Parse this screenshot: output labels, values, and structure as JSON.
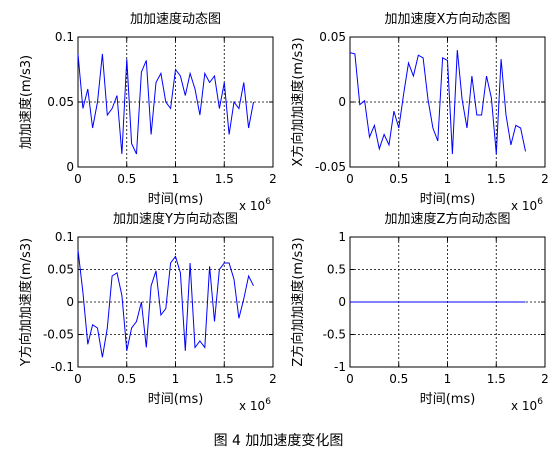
{
  "caption": "图 4  加加速度变化图",
  "colors": {
    "line": "#0000ff",
    "axes": "#000000",
    "grid": "#000000",
    "background": "#ffffff"
  },
  "chart_data": [
    {
      "type": "line",
      "title": "加加速度动态图",
      "xlabel": "时间(ms)",
      "ylabel": "加加速度(m/s3)",
      "x_multiplier": "x 10",
      "x_multiplier_exp": "6",
      "xlim": [
        0,
        2
      ],
      "ylim": [
        0,
        0.1
      ],
      "xticks": [
        0,
        0.5,
        1,
        1.5,
        2
      ],
      "xtick_labels": [
        "0",
        "0.5",
        "1",
        "1.5",
        "2"
      ],
      "yticks": [
        0,
        0.05,
        0.1
      ],
      "ytick_labels": [
        "0",
        "0.05",
        "0.1"
      ],
      "grid": true,
      "series": [
        {
          "x": [
            0,
            0.05,
            0.1,
            0.15,
            0.2,
            0.25,
            0.3,
            0.35,
            0.4,
            0.45,
            0.5,
            0.55,
            0.6,
            0.65,
            0.7,
            0.75,
            0.8,
            0.85,
            0.9,
            0.95,
            1.0,
            1.05,
            1.1,
            1.15,
            1.2,
            1.25,
            1.3,
            1.35,
            1.4,
            1.45,
            1.5,
            1.55,
            1.6,
            1.65,
            1.7,
            1.75,
            1.8
          ],
          "y": [
            0.087,
            0.045,
            0.06,
            0.03,
            0.05,
            0.087,
            0.04,
            0.045,
            0.055,
            0.01,
            0.083,
            0.018,
            0.01,
            0.073,
            0.082,
            0.025,
            0.065,
            0.072,
            0.05,
            0.045,
            0.075,
            0.07,
            0.055,
            0.072,
            0.06,
            0.04,
            0.072,
            0.065,
            0.07,
            0.045,
            0.065,
            0.025,
            0.05,
            0.045,
            0.065,
            0.03,
            0.05
          ]
        }
      ]
    },
    {
      "type": "line",
      "title": "加加速度X方向动态图",
      "xlabel": "时间(ms)",
      "ylabel": "X方向加加速度(m/s3)",
      "x_multiplier": "x 10",
      "x_multiplier_exp": "6",
      "xlim": [
        0,
        2
      ],
      "ylim": [
        -0.05,
        0.05
      ],
      "xticks": [
        0,
        0.5,
        1,
        1.5,
        2
      ],
      "xtick_labels": [
        "0",
        "0.5",
        "1",
        "1.5",
        "2"
      ],
      "yticks": [
        -0.05,
        0,
        0.05
      ],
      "ytick_labels": [
        "-0.05",
        "0",
        "0.05"
      ],
      "grid": true,
      "series": [
        {
          "x": [
            0,
            0.05,
            0.1,
            0.15,
            0.2,
            0.25,
            0.3,
            0.35,
            0.4,
            0.45,
            0.5,
            0.55,
            0.6,
            0.65,
            0.7,
            0.75,
            0.8,
            0.85,
            0.9,
            0.95,
            1.0,
            1.05,
            1.1,
            1.15,
            1.2,
            1.25,
            1.3,
            1.35,
            1.4,
            1.45,
            1.5,
            1.55,
            1.6,
            1.65,
            1.7,
            1.75,
            1.8
          ],
          "y": [
            0.038,
            0.037,
            -0.002,
            0.001,
            -0.027,
            -0.018,
            -0.036,
            -0.025,
            -0.033,
            -0.007,
            -0.02,
            0.006,
            0.03,
            0.02,
            0.036,
            0.034,
            0.002,
            -0.02,
            -0.03,
            0.034,
            0.032,
            -0.04,
            0.04,
            0.002,
            -0.02,
            0.02,
            -0.01,
            -0.01,
            0.02,
            0.003,
            -0.04,
            0.033,
            -0.01,
            -0.033,
            -0.018,
            -0.02,
            -0.038
          ]
        }
      ]
    },
    {
      "type": "line",
      "title": "加加速度Y方向动态图",
      "xlabel": "时间(ms)",
      "ylabel": "Y方向加加速度(m/s3)",
      "x_multiplier": "x 10",
      "x_multiplier_exp": "6",
      "xlim": [
        0,
        2
      ],
      "ylim": [
        -0.1,
        0.1
      ],
      "xticks": [
        0,
        0.5,
        1,
        1.5,
        2
      ],
      "xtick_labels": [
        "0",
        "0.5",
        "1",
        "1.5",
        "2"
      ],
      "yticks": [
        -0.1,
        -0.05,
        0,
        0.05,
        0.1
      ],
      "ytick_labels": [
        "-0.1",
        "-0.05",
        "0",
        "0.05",
        "0.1"
      ],
      "grid": true,
      "series": [
        {
          "x": [
            0,
            0.05,
            0.1,
            0.15,
            0.2,
            0.25,
            0.3,
            0.35,
            0.4,
            0.45,
            0.5,
            0.55,
            0.6,
            0.65,
            0.7,
            0.75,
            0.8,
            0.85,
            0.9,
            0.95,
            1.0,
            1.05,
            1.1,
            1.15,
            1.2,
            1.25,
            1.3,
            1.35,
            1.4,
            1.45,
            1.5,
            1.55,
            1.6,
            1.65,
            1.7,
            1.75,
            1.8
          ],
          "y": [
            0.08,
            0.015,
            -0.065,
            -0.035,
            -0.04,
            -0.085,
            -0.04,
            0.04,
            0.045,
            0.01,
            -0.075,
            -0.04,
            -0.03,
            0.0,
            -0.07,
            0.025,
            0.048,
            -0.02,
            -0.01,
            0.06,
            0.07,
            0.045,
            -0.075,
            0.06,
            -0.07,
            -0.06,
            -0.07,
            0.055,
            -0.03,
            0.05,
            0.06,
            0.06,
            0.035,
            -0.025,
            0.005,
            0.04,
            0.025
          ]
        }
      ]
    },
    {
      "type": "line",
      "title": "加加速度Z方向动态图",
      "xlabel": "时间(ms)",
      "ylabel": "Z方向加加速度(m/s3)",
      "x_multiplier": "x 10",
      "x_multiplier_exp": "6",
      "xlim": [
        0,
        2
      ],
      "ylim": [
        -1,
        1
      ],
      "xticks": [
        0,
        0.5,
        1,
        1.5,
        2
      ],
      "xtick_labels": [
        "0",
        "0.5",
        "1",
        "1.5",
        "2"
      ],
      "yticks": [
        -1,
        -0.5,
        0,
        0.5,
        1
      ],
      "ytick_labels": [
        "-1",
        "-0.5",
        "0",
        "0.5",
        "1"
      ],
      "grid": true,
      "series": [
        {
          "x": [
            0,
            1.8
          ],
          "y": [
            0,
            0
          ]
        }
      ]
    }
  ]
}
